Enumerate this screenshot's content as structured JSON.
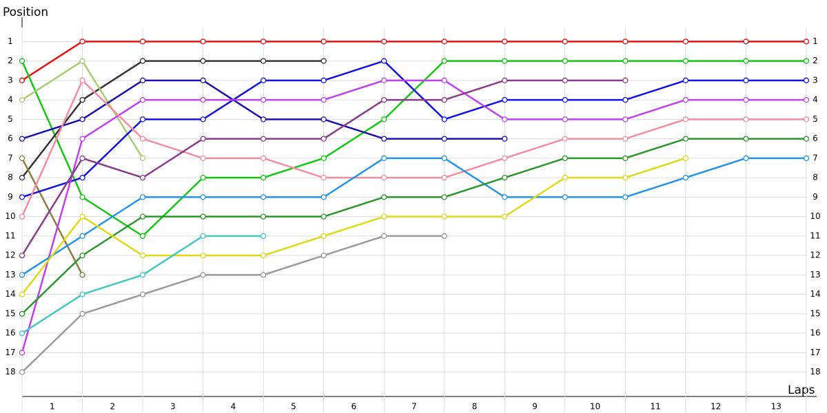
{
  "chart_data": {
    "type": "line",
    "ylabel": "Position",
    "xlabel": "Laps",
    "x": [
      0,
      1,
      2,
      3,
      4,
      5,
      6,
      7,
      8,
      9,
      10,
      11,
      12,
      13
    ],
    "xlim": [
      0,
      13
    ],
    "xticks": [
      {
        "value": 0.5,
        "label": "1"
      },
      {
        "value": 1.5,
        "label": "2"
      },
      {
        "value": 2.5,
        "label": "3"
      },
      {
        "value": 3.5,
        "label": "4"
      },
      {
        "value": 4.5,
        "label": "5"
      },
      {
        "value": 5.5,
        "label": "6"
      },
      {
        "value": 6.5,
        "label": "7"
      },
      {
        "value": 7.5,
        "label": "8"
      },
      {
        "value": 8.5,
        "label": "9"
      },
      {
        "value": 9.5,
        "label": "10"
      },
      {
        "value": 10.5,
        "label": "11"
      },
      {
        "value": 11.5,
        "label": "12"
      },
      {
        "value": 12.5,
        "label": "13"
      }
    ],
    "ylim": [
      19.25,
      -0.25
    ],
    "yticks": [
      1,
      2,
      3,
      4,
      5,
      6,
      7,
      8,
      9,
      10,
      11,
      12,
      13,
      14,
      15,
      16,
      17,
      18
    ],
    "grid": true,
    "series": [
      {
        "color": "#e81010",
        "values": [
          3,
          1,
          1,
          1,
          1,
          1,
          1,
          1,
          1,
          1,
          1,
          1,
          1,
          1
        ]
      },
      {
        "color": "#10c810",
        "values": [
          2,
          9,
          11,
          8,
          8,
          7,
          5,
          2,
          2,
          2,
          2,
          2,
          2,
          2
        ]
      },
      {
        "color": "#333333",
        "values": [
          8,
          4,
          2,
          2,
          2,
          2,
          null,
          null,
          null,
          null,
          null,
          null,
          null,
          null
        ]
      },
      {
        "color": "#a8cc70",
        "values": [
          4,
          2,
          7,
          null,
          null,
          null,
          null,
          null,
          null,
          null,
          null,
          null,
          null,
          null
        ]
      },
      {
        "color": "#8b7d40",
        "values": [
          7,
          13,
          null,
          null,
          null,
          null,
          null,
          null,
          null,
          null,
          null,
          null,
          null,
          null
        ]
      },
      {
        "color": "#1a10b0",
        "values": [
          6,
          5,
          3,
          3,
          5,
          5,
          6,
          6,
          6,
          null,
          null,
          null,
          null,
          null
        ]
      },
      {
        "color": "#1010e8",
        "values": [
          9,
          8,
          5,
          5,
          3,
          3,
          2,
          5,
          4,
          4,
          4,
          3,
          3,
          3
        ]
      },
      {
        "color": "#c040f0",
        "values": [
          17,
          6,
          4,
          4,
          4,
          4,
          3,
          3,
          5,
          5,
          5,
          4,
          4,
          4
        ]
      },
      {
        "color": "#f48ca0",
        "values": [
          10,
          3,
          6,
          7,
          7,
          8,
          8,
          8,
          7,
          6,
          6,
          5,
          5,
          5
        ]
      },
      {
        "color": "#8b3a8b",
        "values": [
          12,
          7,
          8,
          6,
          6,
          6,
          4,
          4,
          3,
          3,
          3,
          null,
          null,
          null
        ]
      },
      {
        "color": "#2094e8",
        "values": [
          13,
          11,
          9,
          9,
          9,
          9,
          7,
          7,
          9,
          9,
          9,
          8,
          7,
          7
        ]
      },
      {
        "color": "#2a962a",
        "values": [
          15,
          12,
          10,
          10,
          10,
          10,
          9,
          9,
          8,
          7,
          7,
          6,
          6,
          6
        ]
      },
      {
        "color": "#e0d810",
        "values": [
          14,
          10,
          12,
          12,
          12,
          11,
          10,
          10,
          10,
          8,
          8,
          7,
          null,
          null
        ]
      },
      {
        "color": "#40c8c0",
        "values": [
          16,
          14,
          13,
          11,
          11,
          null,
          null,
          null,
          null,
          null,
          null,
          null,
          null,
          null
        ]
      },
      {
        "color": "#9a9a9a",
        "values": [
          18,
          15,
          14,
          13,
          13,
          12,
          11,
          11,
          null,
          null,
          null,
          null,
          null,
          null
        ]
      }
    ]
  }
}
